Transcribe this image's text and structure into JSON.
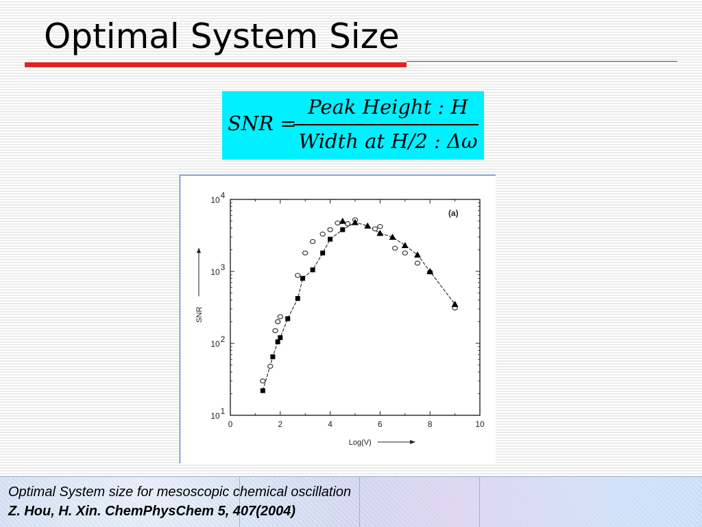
{
  "slide": {
    "title": "Optimal System Size",
    "accent_color": "#e41f1f"
  },
  "formula": {
    "lhs": "SNR =",
    "numerator": "Peak  Height :  H",
    "denominator": "Width at  H/2 : Δω",
    "box_color": "#00f0ff"
  },
  "chart_data": {
    "type": "scatter",
    "panel_label": "(a)",
    "xlabel": "Log(V)",
    "ylabel": "SNR",
    "xlim": [
      0,
      10
    ],
    "ylim": [
      10,
      10000
    ],
    "y_scale": "log",
    "x_ticks": [
      "0",
      "2",
      "4",
      "6",
      "8",
      "10"
    ],
    "y_ticks": [
      {
        "value": 10,
        "base": "10",
        "exp": "1"
      },
      {
        "value": 100,
        "base": "10",
        "exp": "2"
      },
      {
        "value": 1000,
        "base": "10",
        "exp": "3"
      },
      {
        "value": 10000,
        "base": "10",
        "exp": "4"
      }
    ],
    "series": [
      {
        "marker": "square-filled",
        "x": [
          1.3,
          1.7,
          1.9,
          2.0,
          2.3,
          2.7,
          2.9,
          3.3,
          3.7,
          4.0,
          4.5
        ],
        "y": [
          22,
          65,
          105,
          120,
          220,
          420,
          800,
          1050,
          1800,
          2800,
          3800
        ]
      },
      {
        "marker": "circle-open",
        "x": [
          1.3,
          1.6,
          1.8,
          1.9,
          2.0,
          2.7,
          3.0,
          3.3,
          3.7,
          4.0,
          4.3,
          4.7,
          5.0,
          5.8,
          6.0,
          6.6,
          7.0,
          7.5,
          8.0,
          9.0
        ],
        "y": [
          30,
          48,
          150,
          200,
          235,
          880,
          1800,
          2600,
          3300,
          3800,
          4700,
          4600,
          5200,
          3900,
          4200,
          2100,
          1800,
          1300,
          980,
          310
        ]
      },
      {
        "marker": "triangle-filled",
        "x": [
          4.5,
          5.0,
          5.5,
          6.0,
          6.5,
          7.0,
          7.5,
          8.0,
          9.0
        ],
        "y": [
          5000,
          4800,
          4300,
          3400,
          3000,
          2300,
          1700,
          1000,
          350
        ]
      }
    ],
    "line_series": {
      "x": [
        1.3,
        1.7,
        1.9,
        2.0,
        2.3,
        2.7,
        2.9,
        3.3,
        3.7,
        4.0,
        4.5,
        5.0,
        5.5,
        6.0,
        6.5,
        7.0,
        7.5,
        8.0,
        9.0
      ],
      "y": [
        22,
        65,
        105,
        120,
        220,
        420,
        800,
        1050,
        1800,
        2800,
        3800,
        4800,
        4300,
        3400,
        3000,
        2300,
        1700,
        1000,
        350
      ]
    }
  },
  "caption": {
    "line1": "Optimal System size for mesoscopic chemical oscillation",
    "line2": "Z. Hou, H. Xin. ChemPhysChem 5, 407(2004)"
  }
}
